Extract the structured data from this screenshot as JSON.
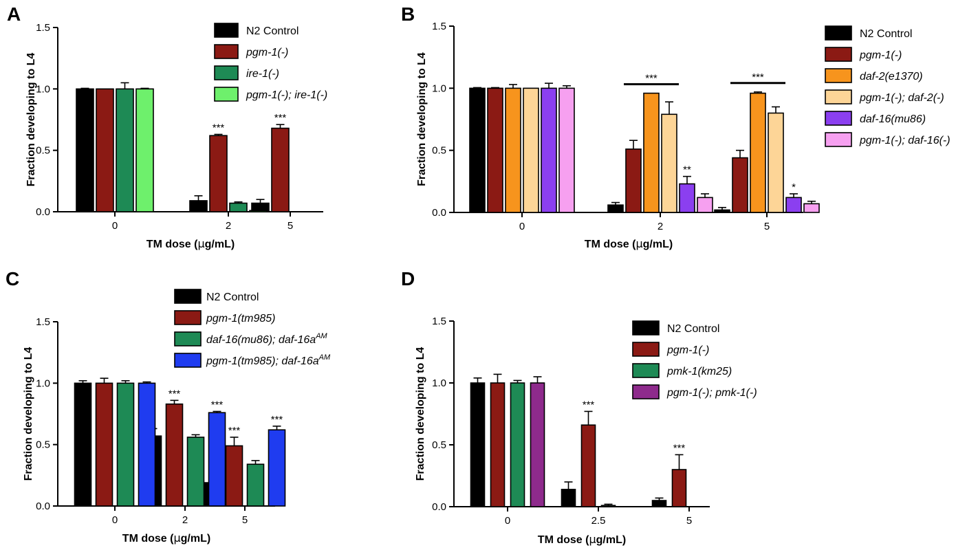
{
  "chart_data": [
    {
      "type": "bar",
      "panel_label": "A",
      "xlabel_prefix": "TM dose (",
      "xlabel_greek": "μ",
      "xlabel_suffix": "g/mL)",
      "ylabel": "Fraction developing to L4",
      "ylim": [
        0,
        1.5
      ],
      "yticks": [
        "0.0",
        "0.5",
        "1.0",
        "1.5"
      ],
      "categories": [
        "0",
        "2",
        "5"
      ],
      "legend_position": "top-right",
      "series": [
        {
          "name": "N2 Control",
          "italic": false,
          "color": "#000000",
          "values": [
            1.0,
            0.09,
            0.07
          ],
          "errors": [
            0.005,
            0.04,
            0.03
          ]
        },
        {
          "name": "pgm-1(-)",
          "italic": true,
          "color": "#8b1a14",
          "values": [
            1.0,
            0.62,
            0.68
          ],
          "errors": [
            0.0,
            0.01,
            0.03
          ]
        },
        {
          "name": "ire-1(-)",
          "italic": true,
          "color": "#1e8a55",
          "values": [
            1.0,
            0.07,
            0.0
          ],
          "errors": [
            0.05,
            0.01,
            0.0
          ]
        },
        {
          "name": "pgm-1(-); ire-1(-)",
          "italic": true,
          "color": "#6ef06c",
          "values": [
            1.0,
            0.01,
            0.0
          ],
          "errors": [
            0.005,
            0.01,
            0.0
          ]
        }
      ],
      "annotations": [
        {
          "text": "***",
          "category": 1,
          "series": 1
        },
        {
          "text": "***",
          "category": 2,
          "series": 1
        }
      ]
    },
    {
      "type": "bar",
      "panel_label": "B",
      "xlabel_prefix": "TM dose (",
      "xlabel_greek": "μ",
      "xlabel_suffix": "g/mL)",
      "ylabel": "Fraction developing to L4",
      "ylim": [
        0,
        1.5
      ],
      "yticks": [
        "0.0",
        "0.5",
        "1.0",
        "1.5"
      ],
      "categories": [
        "0",
        "2",
        "5"
      ],
      "legend_position": "top-right",
      "series": [
        {
          "name": "N2 Control",
          "italic": false,
          "color": "#000000",
          "values": [
            1.0,
            0.06,
            0.02
          ],
          "errors": [
            0.005,
            0.02,
            0.02
          ]
        },
        {
          "name": "pgm-1(-)",
          "italic": true,
          "color": "#8b1a14",
          "values": [
            1.0,
            0.51,
            0.44
          ],
          "errors": [
            0.005,
            0.07,
            0.06
          ]
        },
        {
          "name": "daf-2(e1370)",
          "italic": true,
          "color": "#f7941d",
          "values": [
            1.0,
            0.96,
            0.96
          ],
          "errors": [
            0.03,
            0.0,
            0.01
          ]
        },
        {
          "name": "pgm-1(-); daf-2(-)",
          "italic": true,
          "color": "#fdd597",
          "values": [
            1.0,
            0.79,
            0.8
          ],
          "errors": [
            0.0,
            0.1,
            0.05
          ]
        },
        {
          "name": "daf-16(mu86)",
          "italic": true,
          "color": "#8b3ff0",
          "values": [
            1.0,
            0.23,
            0.12
          ],
          "errors": [
            0.04,
            0.06,
            0.03
          ]
        },
        {
          "name": "pgm-1(-); daf-16(-)",
          "italic": true,
          "color": "#f6a0f0",
          "values": [
            1.0,
            0.12,
            0.07
          ],
          "errors": [
            0.02,
            0.03,
            0.02
          ]
        }
      ],
      "annotations": [
        {
          "text": "***",
          "bracket": true,
          "category": 1,
          "from_series": 1,
          "to_series": 3
        },
        {
          "text": "***",
          "bracket": true,
          "category": 2,
          "from_series": 1,
          "to_series": 3
        },
        {
          "text": "**",
          "category": 1,
          "series": 4
        },
        {
          "text": "*",
          "category": 2,
          "series": 4
        }
      ]
    },
    {
      "type": "bar",
      "panel_label": "C",
      "xlabel_prefix": "TM dose (",
      "xlabel_greek": "μ",
      "xlabel_suffix": "g/mL)",
      "ylabel": "Fraction developing to L4",
      "ylim": [
        0,
        1.5
      ],
      "yticks": [
        "0.0",
        "0.5",
        "1.0",
        "1.5"
      ],
      "categories": [
        "0",
        "2",
        "5"
      ],
      "legend_position": "top-right",
      "series": [
        {
          "name": "N2 Control",
          "italic": false,
          "color": "#000000",
          "values": [
            1.0,
            0.57,
            0.19
          ],
          "errors": [
            0.02,
            0.06,
            0.0
          ]
        },
        {
          "name": "pgm-1(tm985)",
          "italic": true,
          "color": "#8b1a14",
          "values": [
            1.0,
            0.83,
            0.49
          ],
          "errors": [
            0.04,
            0.03,
            0.07
          ]
        },
        {
          "name": "daf-16(mu86); daf-16a",
          "sup": "AM",
          "italic": true,
          "color": "#1e8a55",
          "values": [
            1.0,
            0.56,
            0.34
          ],
          "errors": [
            0.02,
            0.02,
            0.03
          ]
        },
        {
          "name": "pgm-1(tm985); daf-16a",
          "sup": "AM",
          "italic": true,
          "color": "#1f3cf0",
          "values": [
            1.0,
            0.76,
            0.62
          ],
          "errors": [
            0.01,
            0.01,
            0.03
          ]
        }
      ],
      "annotations": [
        {
          "text": "***",
          "category": 1,
          "series": 1
        },
        {
          "text": "***",
          "category": 1,
          "series": 3
        },
        {
          "text": "***",
          "category": 2,
          "series": 1
        },
        {
          "text": "***",
          "category": 2,
          "series": 3
        }
      ]
    },
    {
      "type": "bar",
      "panel_label": "D",
      "xlabel_prefix": "TM dose (",
      "xlabel_greek": "μ",
      "xlabel_suffix": "g/mL)",
      "ylabel": "Fraction developing to L4",
      "ylim": [
        0,
        1.5
      ],
      "yticks": [
        "0.0",
        "0.5",
        "1.0",
        "1.5"
      ],
      "categories": [
        "0",
        "2.5",
        "5"
      ],
      "legend_position": "top-right",
      "series": [
        {
          "name": "N2 Control",
          "italic": false,
          "color": "#000000",
          "values": [
            1.0,
            0.14,
            0.05
          ],
          "errors": [
            0.04,
            0.06,
            0.02
          ]
        },
        {
          "name": "pgm-1(-)",
          "italic": true,
          "color": "#8b1a14",
          "values": [
            1.0,
            0.66,
            0.3
          ],
          "errors": [
            0.07,
            0.11,
            0.12
          ]
        },
        {
          "name": "pmk-1(km25)",
          "italic": true,
          "color": "#1e8a55",
          "values": [
            1.0,
            0.01,
            0.0
          ],
          "errors": [
            0.02,
            0.01,
            0.0
          ]
        },
        {
          "name": "pgm-1(-); pmk-1(-)",
          "italic": true,
          "color": "#8e2a8c",
          "values": [
            1.0,
            0.0,
            0.0
          ],
          "errors": [
            0.05,
            0.0,
            0.0
          ]
        }
      ],
      "annotations": [
        {
          "text": "***",
          "category": 1,
          "series": 1
        },
        {
          "text": "***",
          "category": 2,
          "series": 1
        }
      ]
    }
  ]
}
